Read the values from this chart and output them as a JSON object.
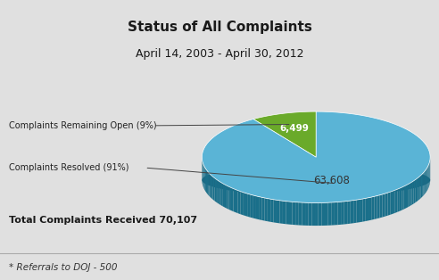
{
  "title": "Status of All Complaints",
  "subtitle": "April 14, 2003 - April 30, 2012",
  "values": [
    6499,
    63608
  ],
  "labels": [
    "Complaints Remaining Open (9%)",
    "Complaints Resolved (91%)"
  ],
  "value_labels": [
    "6,499",
    "63,608"
  ],
  "colors": [
    "#6aaa2a",
    "#5ab4d6"
  ],
  "dark_colors": [
    "#3d6618",
    "#1a6f8a"
  ],
  "total_text": "Total Complaints Received 70,107",
  "footnote": "* Referrals to DOJ - 500",
  "bg_color": "#e0e0e0",
  "header_bg": "#ffffff",
  "footer_bg": "#cccccc",
  "title_fontsize": 11,
  "subtitle_fontsize": 9,
  "startangle": 90,
  "pie_depth": 0.13
}
